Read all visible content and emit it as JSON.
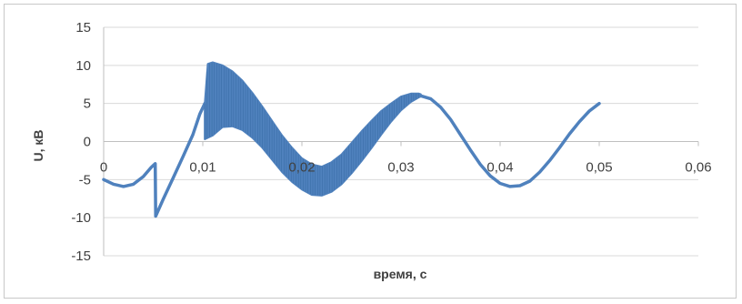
{
  "chart_data": {
    "type": "line",
    "title": "",
    "xlabel": "время, с",
    "ylabel": "U, кВ",
    "xlim": [
      0,
      0.06
    ],
    "ylim": [
      -15,
      15
    ],
    "x_ticks": [
      0,
      0.01,
      0.02,
      0.03,
      0.04,
      0.05,
      0.06
    ],
    "x_tick_labels": [
      "0",
      "0,01",
      "0,02",
      "0,03",
      "0,04",
      "0,05",
      "0,06"
    ],
    "y_ticks": [
      -15,
      -10,
      -5,
      0,
      5,
      10,
      15
    ],
    "y_tick_labels": [
      "-15",
      "-10",
      "-5",
      "0",
      "5",
      "10",
      "15"
    ],
    "grid": true,
    "legend": "none",
    "series_color": "#4f81bd",
    "series": [
      {
        "points": [
          [
            0,
            -5
          ],
          [
            0.001,
            -5.6
          ],
          [
            0.002,
            -5.9
          ],
          [
            0.003,
            -5.6
          ],
          [
            0.004,
            -4.6
          ],
          [
            0.0048,
            -3.4
          ],
          [
            0.0052,
            -2.9
          ],
          [
            0.00525,
            -9.8
          ],
          [
            0.006,
            -7.6
          ],
          [
            0.007,
            -4.8
          ],
          [
            0.008,
            -2.0
          ],
          [
            0.009,
            0.9
          ],
          [
            0.0097,
            3.6
          ],
          [
            0.0102,
            5.0
          ]
        ]
      },
      {
        "band": true,
        "upper": [
          [
            0.0102,
            5.0
          ],
          [
            0.0105,
            10.2
          ],
          [
            0.011,
            10.4
          ],
          [
            0.012,
            10.0
          ],
          [
            0.013,
            9.2
          ],
          [
            0.014,
            8.0
          ],
          [
            0.015,
            6.4
          ],
          [
            0.016,
            4.6
          ],
          [
            0.017,
            2.7
          ],
          [
            0.018,
            0.8
          ],
          [
            0.019,
            -0.8
          ],
          [
            0.02,
            -2.2
          ],
          [
            0.021,
            -3.0
          ],
          [
            0.022,
            -3.3
          ],
          [
            0.023,
            -2.7
          ],
          [
            0.024,
            -1.7
          ],
          [
            0.025,
            -0.2
          ],
          [
            0.026,
            1.3
          ],
          [
            0.027,
            2.7
          ],
          [
            0.028,
            4.0
          ],
          [
            0.029,
            5.0
          ],
          [
            0.03,
            5.9
          ],
          [
            0.031,
            6.3
          ],
          [
            0.0318,
            6.3
          ],
          [
            0.032,
            6.2
          ]
        ],
        "lower": [
          [
            0.0102,
            0.3
          ],
          [
            0.011,
            0.8
          ],
          [
            0.012,
            1.9
          ],
          [
            0.013,
            2.0
          ],
          [
            0.014,
            1.5
          ],
          [
            0.015,
            0.5
          ],
          [
            0.016,
            -0.8
          ],
          [
            0.017,
            -2.4
          ],
          [
            0.018,
            -4.0
          ],
          [
            0.019,
            -5.3
          ],
          [
            0.02,
            -6.3
          ],
          [
            0.021,
            -7.0
          ],
          [
            0.022,
            -7.1
          ],
          [
            0.023,
            -6.6
          ],
          [
            0.024,
            -5.6
          ],
          [
            0.025,
            -4.2
          ],
          [
            0.026,
            -2.6
          ],
          [
            0.027,
            -0.9
          ],
          [
            0.028,
            0.9
          ],
          [
            0.029,
            2.6
          ],
          [
            0.03,
            4.1
          ],
          [
            0.031,
            5.2
          ],
          [
            0.0318,
            5.8
          ],
          [
            0.032,
            5.9
          ]
        ]
      },
      {
        "points": [
          [
            0.032,
            6.0
          ],
          [
            0.033,
            5.6
          ],
          [
            0.034,
            4.5
          ],
          [
            0.035,
            2.9
          ],
          [
            0.036,
            0.9
          ],
          [
            0.037,
            -1.1
          ],
          [
            0.038,
            -3.0
          ],
          [
            0.039,
            -4.5
          ],
          [
            0.04,
            -5.5
          ],
          [
            0.041,
            -5.9
          ],
          [
            0.042,
            -5.8
          ],
          [
            0.043,
            -5.2
          ],
          [
            0.044,
            -4.0
          ],
          [
            0.045,
            -2.5
          ],
          [
            0.046,
            -0.8
          ],
          [
            0.047,
            1.0
          ],
          [
            0.048,
            2.6
          ],
          [
            0.049,
            4.0
          ],
          [
            0.05,
            5.0
          ]
        ]
      }
    ]
  }
}
